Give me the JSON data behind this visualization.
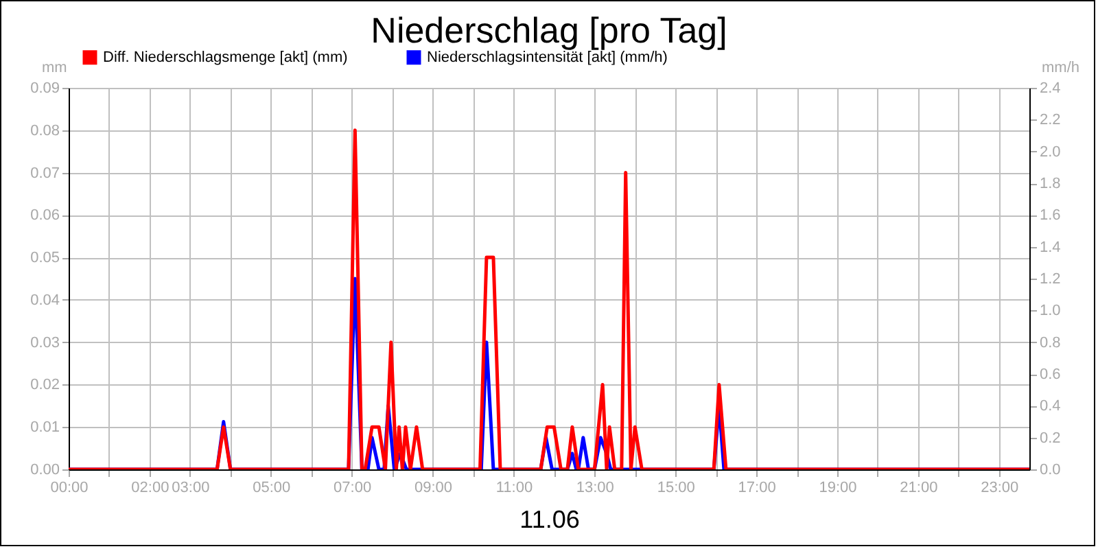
{
  "chart_data": {
    "type": "line",
    "title": "Niederschlag [pro Tag]",
    "xlabel": "11.06",
    "ylabel": "mm",
    "y2label": "mm/h",
    "xlim": [
      0,
      23.75
    ],
    "xticks": [
      {
        "value": 0,
        "label": "00:00"
      },
      {
        "value": 1,
        "label": null
      },
      {
        "value": 2,
        "label": "02:00"
      },
      {
        "value": 3,
        "label": "03:00"
      },
      {
        "value": 4,
        "label": null
      },
      {
        "value": 5,
        "label": "05:00"
      },
      {
        "value": 6,
        "label": null
      },
      {
        "value": 7,
        "label": "07:00"
      },
      {
        "value": 8,
        "label": null
      },
      {
        "value": 9,
        "label": "09:00"
      },
      {
        "value": 10,
        "label": null
      },
      {
        "value": 11,
        "label": "11:00"
      },
      {
        "value": 12,
        "label": null
      },
      {
        "value": 13,
        "label": "13:00"
      },
      {
        "value": 14,
        "label": null
      },
      {
        "value": 15,
        "label": "15:00"
      },
      {
        "value": 16,
        "label": null
      },
      {
        "value": 17,
        "label": "17:00"
      },
      {
        "value": 18,
        "label": null
      },
      {
        "value": 19,
        "label": "19:00"
      },
      {
        "value": 20,
        "label": null
      },
      {
        "value": 21,
        "label": "21:00"
      },
      {
        "value": 22,
        "label": null
      },
      {
        "value": 23,
        "label": "23:00"
      }
    ],
    "ylim": [
      0,
      0.09
    ],
    "yticks": [
      {
        "value": 0,
        "label": "0.00"
      },
      0.01,
      0.02,
      0.03,
      0.04,
      0.05,
      0.06,
      0.07,
      0.08,
      0.09
    ],
    "y2lim": [
      0,
      2.4
    ],
    "y2ticks": [
      {
        "value": 0,
        "label": "0.0"
      },
      0.2,
      0.4,
      0.6,
      0.8,
      {
        "value": 1,
        "label": "1.0"
      },
      1.2,
      1.4,
      1.6,
      1.8,
      {
        "value": 2,
        "label": "2.0"
      },
      2.2,
      2.4
    ],
    "grid": true,
    "legend": "top left",
    "line_style": "solid",
    "marker": "none",
    "series": [
      {
        "name": "Diff. Niederschlagsmenge [akt] (mm)",
        "color": "#ff0000",
        "x": [
          0,
          3.67,
          3.83,
          4,
          6.92,
          7.08,
          7.25,
          7.33,
          7.5,
          7.67,
          7.83,
          7.97,
          8.1,
          8.17,
          8.25,
          8.33,
          8.45,
          8.6,
          8.75,
          10.17,
          10.33,
          10.5,
          10.67,
          11.67,
          11.83,
          12,
          12.17,
          12.33,
          12.45,
          12.6,
          13,
          13.2,
          13.3,
          13.37,
          13.5,
          13.67,
          13.77,
          13.9,
          14,
          14.17,
          15.95,
          16.08,
          16.25,
          23.75
        ],
        "values": [
          0,
          0,
          0.01,
          0,
          0,
          0.08,
          0,
          0,
          0.01,
          0.01,
          0,
          0.03,
          0,
          0.01,
          0,
          0.01,
          0,
          0.01,
          0,
          0,
          0.05,
          0.05,
          0,
          0,
          0.01,
          0.01,
          0,
          0,
          0.01,
          0,
          0,
          0.02,
          0,
          0.01,
          0,
          0,
          0.07,
          0,
          0.01,
          0,
          0,
          0.02,
          0,
          0
        ]
      },
      {
        "name": "Niederschlagsintensität [akt] (mm/h)",
        "color": "#0000ff",
        "axis": "y2",
        "x": [
          0,
          3.67,
          3.83,
          4,
          6.92,
          7.08,
          7.25,
          7.4,
          7.5,
          7.67,
          7.8,
          7.9,
          8.05,
          8.2,
          8.35,
          10.2,
          10.33,
          10.5,
          11.67,
          11.8,
          11.95,
          12.33,
          12.45,
          12.55,
          12.6,
          12.72,
          12.85,
          13,
          13.15,
          13.3,
          13.4,
          15.95,
          16.08,
          16.2,
          23.75
        ],
        "values": [
          0,
          0,
          0.3,
          0,
          0,
          1.2,
          0,
          0,
          0.2,
          0,
          0,
          0.4,
          0,
          0.1,
          0,
          0,
          0.8,
          0,
          0,
          0.2,
          0,
          0,
          0.1,
          0,
          0,
          0.2,
          0,
          0,
          0.2,
          0.1,
          0,
          0,
          0.4,
          0,
          0
        ]
      }
    ]
  }
}
